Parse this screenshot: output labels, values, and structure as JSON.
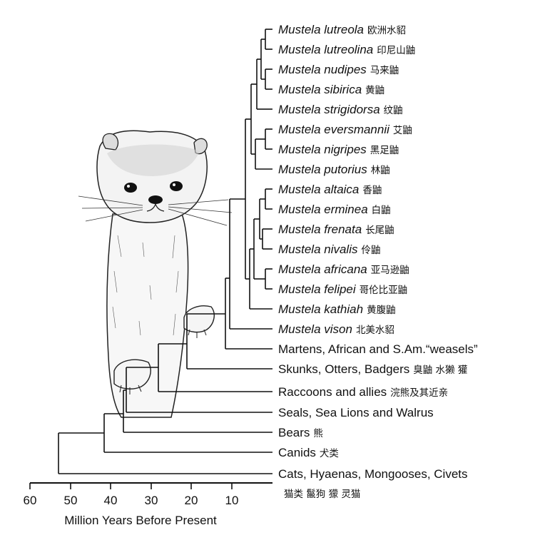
{
  "taxa": [
    {
      "kind": "species",
      "latin": "Mustela lutreola",
      "cn": "欧洲水貂"
    },
    {
      "kind": "species",
      "latin": "Mustela lutreolina",
      "cn": "印尼山鼬"
    },
    {
      "kind": "species",
      "latin": "Mustela nudipes",
      "cn": "马来鼬"
    },
    {
      "kind": "species",
      "latin": "Mustela sibirica",
      "cn": "黄鼬"
    },
    {
      "kind": "species",
      "latin": "Mustela strigidorsa",
      "cn": "纹鼬"
    },
    {
      "kind": "species",
      "latin": "Mustela eversmannii",
      "cn": "艾鼬"
    },
    {
      "kind": "species",
      "latin": "Mustela nigripes",
      "cn": "黑足鼬"
    },
    {
      "kind": "species",
      "latin": "Mustela putorius",
      "cn": "林鼬"
    },
    {
      "kind": "species",
      "latin": "Mustela altaica",
      "cn": "香鼬"
    },
    {
      "kind": "species",
      "latin": "Mustela erminea",
      "cn": "白鼬"
    },
    {
      "kind": "species",
      "latin": "Mustela frenata",
      "cn": "长尾鼬"
    },
    {
      "kind": "species",
      "latin": "Mustela nivalis",
      "cn": "伶鼬"
    },
    {
      "kind": "species",
      "latin": "Mustela africana",
      "cn": "亚马逊鼬"
    },
    {
      "kind": "species",
      "latin": "Mustela felipei",
      "cn": "哥伦比亚鼬"
    },
    {
      "kind": "species",
      "latin": "Mustela kathiah",
      "cn": "黄腹鼬"
    },
    {
      "kind": "species",
      "latin": "Mustela vison",
      "cn": "北美水貂"
    },
    {
      "kind": "group",
      "latin": "Martens, African and S.Am.“weasels”",
      "cn": ""
    },
    {
      "kind": "group",
      "latin": "Skunks, Otters, Badgers",
      "cn": "臭鼬 水獭 獾"
    },
    {
      "kind": "group",
      "latin": "Raccoons and allies",
      "cn": "浣熊及其近亲"
    },
    {
      "kind": "group",
      "latin": "Seals, Sea Lions and Walrus",
      "cn": ""
    },
    {
      "kind": "group",
      "latin": "Bears",
      "cn": "熊"
    },
    {
      "kind": "group",
      "latin": "Canids",
      "cn": "犬类"
    },
    {
      "kind": "group",
      "latin": "Cats, Hyaenas, Mongooses, Civets",
      "cn": "猫类 鬣狗 獴 灵猫"
    }
  ],
  "axis": {
    "title": "Million Years Before Present",
    "ticks": [
      "60",
      "50",
      "40",
      "30",
      "20",
      "10"
    ]
  }
}
